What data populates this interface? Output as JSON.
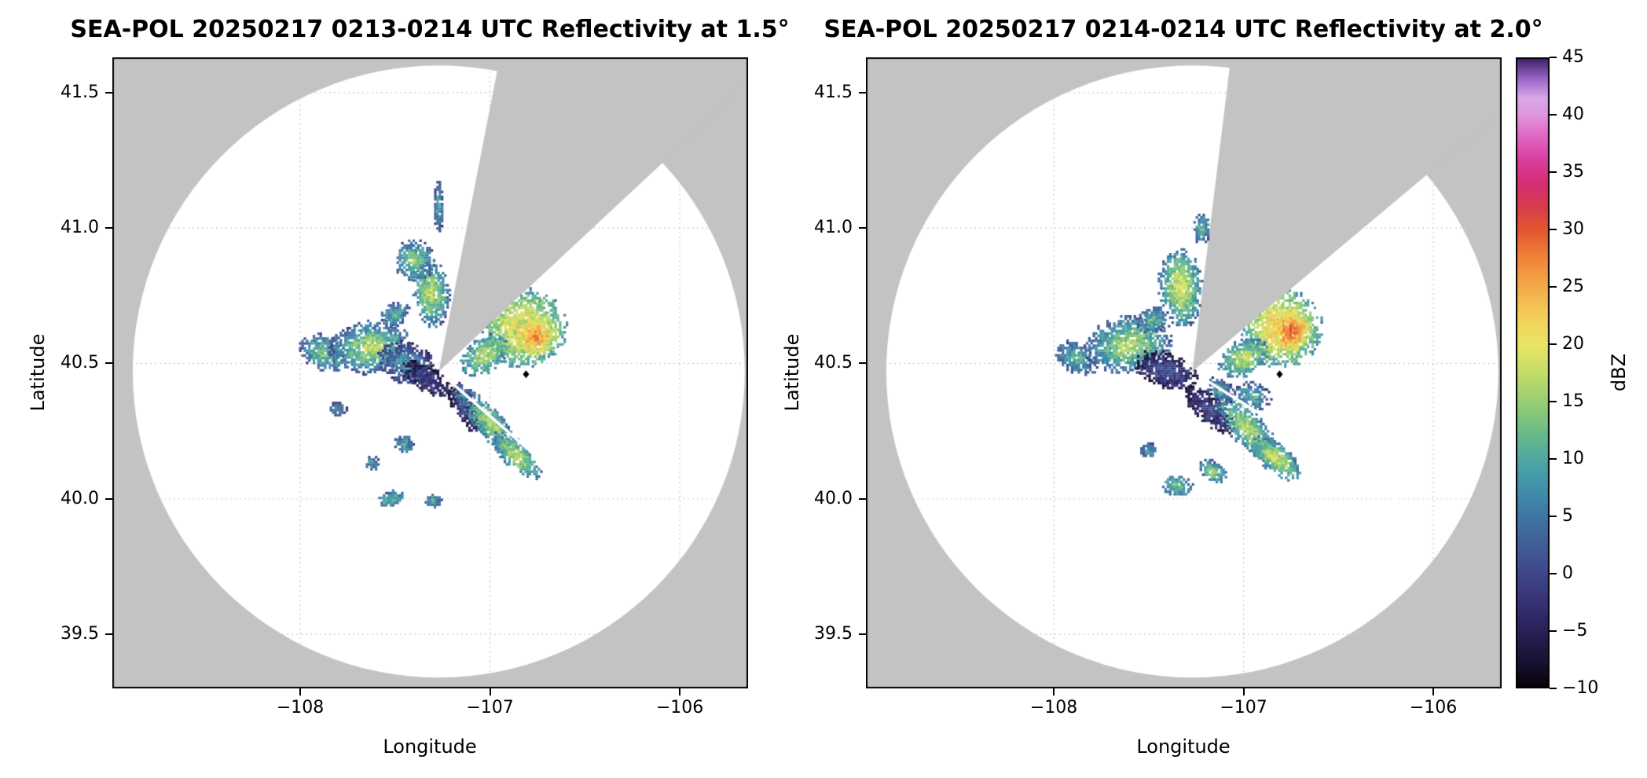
{
  "chart_data": {
    "type": "radar_ppi_reflectivity_pair",
    "instrument": "SEA-POL",
    "date": "20250217",
    "grid": true,
    "grid_color": "#cccccc",
    "background_outside_range": "#c3c3c3",
    "coverage_fill": "#ffffff",
    "colorbar": {
      "label": "dBZ",
      "vmin": -10,
      "vmax": 45,
      "ticks": [
        {
          "value": 45,
          "label": "45"
        },
        {
          "value": 40,
          "label": "40"
        },
        {
          "value": 35,
          "label": "35"
        },
        {
          "value": 30,
          "label": "30"
        },
        {
          "value": 25,
          "label": "25"
        },
        {
          "value": 20,
          "label": "20"
        },
        {
          "value": 15,
          "label": "15"
        },
        {
          "value": 10,
          "label": "10"
        },
        {
          "value": 5,
          "label": "5"
        },
        {
          "value": 0,
          "label": "0"
        },
        {
          "value": -5,
          "label": "−5"
        },
        {
          "value": -10,
          "label": "−10"
        }
      ],
      "stops": [
        [
          -10,
          "#050005"
        ],
        [
          -8,
          "#16102c"
        ],
        [
          -6,
          "#241a49"
        ],
        [
          -4,
          "#2f2763"
        ],
        [
          -2,
          "#383678"
        ],
        [
          0,
          "#3e4689"
        ],
        [
          2,
          "#405995"
        ],
        [
          4,
          "#406c9e"
        ],
        [
          6,
          "#3f80a9"
        ],
        [
          8,
          "#4295ab"
        ],
        [
          10,
          "#4fa8a2"
        ],
        [
          12,
          "#66b98c"
        ],
        [
          14,
          "#86c778"
        ],
        [
          16,
          "#a9d46e"
        ],
        [
          18,
          "#cbdf67"
        ],
        [
          20,
          "#e9e464"
        ],
        [
          22,
          "#f2d45b"
        ],
        [
          24,
          "#f4b94f"
        ],
        [
          26,
          "#f39c42"
        ],
        [
          28,
          "#ee7b37"
        ],
        [
          30,
          "#e2572f"
        ],
        [
          32,
          "#d83c4b"
        ],
        [
          34,
          "#d42d74"
        ],
        [
          36,
          "#d83d9d"
        ],
        [
          38,
          "#e063c2"
        ],
        [
          40,
          "#e195dd"
        ],
        [
          41.5,
          "#d8a9e8"
        ],
        [
          43,
          "#a06ccc"
        ],
        [
          45,
          "#3c1d66"
        ]
      ]
    },
    "panels": [
      {
        "title": "SEA-POL 20250217 0213-0214 UTC Reflectivity at 1.5°",
        "time_utc": "0213-0214",
        "elevation_deg": 1.5,
        "xlabel": "Longitude",
        "ylabel": "Latitude",
        "xlim": [
          -108.99,
          -105.64
        ],
        "ylim": [
          39.3,
          41.63
        ],
        "xticks": [
          {
            "value": -108,
            "label": "−108"
          },
          {
            "value": -107,
            "label": "−107"
          },
          {
            "value": -106,
            "label": "−106"
          }
        ],
        "yticks": [
          {
            "value": 39.5,
            "label": "39.5"
          },
          {
            "value": 40.0,
            "label": "40.0"
          },
          {
            "value": 40.5,
            "label": "40.5"
          },
          {
            "value": 41.0,
            "label": "41.0"
          },
          {
            "value": 41.5,
            "label": "41.5"
          }
        ],
        "radar_site": {
          "lon": -107.27,
          "lat": 40.47
        },
        "range_radius_deg_lat": 1.13,
        "blocked_sector_az_deg": [
          11,
          47
        ],
        "clear_spoke_az_deg": [
          131
        ],
        "site_marker": {
          "lon": -106.81,
          "lat": 40.46,
          "color": "#000000",
          "shape": "diamond"
        },
        "seed": 11,
        "echo_regions": [
          {
            "lon": -107.88,
            "lat": 40.54,
            "rx": 0.13,
            "ry": 0.07,
            "rot": -15,
            "peak_dbz": 14,
            "edge_dbz": 1
          },
          {
            "lon": -107.63,
            "lat": 40.56,
            "rx": 0.22,
            "ry": 0.1,
            "rot": 5,
            "peak_dbz": 18,
            "edge_dbz": 0
          },
          {
            "lon": -107.44,
            "lat": 40.5,
            "rx": 0.16,
            "ry": 0.08,
            "rot": -10,
            "peak_dbz": 9,
            "edge_dbz": -4
          },
          {
            "lon": -107.33,
            "lat": 40.44,
            "rx": 0.15,
            "ry": 0.055,
            "rot": -20,
            "peak_dbz": 0,
            "edge_dbz": -8
          },
          {
            "lon": -107.12,
            "lat": 40.32,
            "rx": 0.13,
            "ry": 0.05,
            "rot": -40,
            "peak_dbz": 0,
            "edge_dbz": -8
          },
          {
            "lon": -107.31,
            "lat": 40.76,
            "rx": 0.1,
            "ry": 0.13,
            "rot": 8,
            "peak_dbz": 18,
            "edge_dbz": 2
          },
          {
            "lon": -107.4,
            "lat": 40.88,
            "rx": 0.11,
            "ry": 0.08,
            "rot": 0,
            "peak_dbz": 15,
            "edge_dbz": 1
          },
          {
            "lon": -107.27,
            "lat": 41.08,
            "rx": 0.03,
            "ry": 0.1,
            "rot": 0,
            "peak_dbz": 10,
            "edge_dbz": -2
          },
          {
            "lon": -106.82,
            "lat": 40.63,
            "rx": 0.23,
            "ry": 0.15,
            "rot": 0,
            "peak_dbz": 24,
            "edge_dbz": 6
          },
          {
            "lon": -106.76,
            "lat": 40.6,
            "rx": 0.12,
            "ry": 0.08,
            "rot": 0,
            "peak_dbz": 28,
            "edge_dbz": 14
          },
          {
            "lon": -107.03,
            "lat": 40.53,
            "rx": 0.13,
            "ry": 0.07,
            "rot": 20,
            "peak_dbz": 18,
            "edge_dbz": 4
          },
          {
            "lon": -107.0,
            "lat": 40.28,
            "rx": 0.2,
            "ry": 0.065,
            "rot": -35,
            "peak_dbz": 17,
            "edge_dbz": 2
          },
          {
            "lon": -106.86,
            "lat": 40.16,
            "rx": 0.15,
            "ry": 0.055,
            "rot": -30,
            "peak_dbz": 19,
            "edge_dbz": 3
          },
          {
            "lon": -107.14,
            "lat": 40.38,
            "rx": 0.07,
            "ry": 0.04,
            "rot": -30,
            "peak_dbz": 8,
            "edge_dbz": -2
          },
          {
            "lon": -107.45,
            "lat": 40.2,
            "rx": 0.06,
            "ry": 0.035,
            "rot": 0,
            "peak_dbz": 10,
            "edge_dbz": 0
          },
          {
            "lon": -107.52,
            "lat": 40.0,
            "rx": 0.07,
            "ry": 0.03,
            "rot": 10,
            "peak_dbz": 13,
            "edge_dbz": 2
          },
          {
            "lon": -107.3,
            "lat": 39.99,
            "rx": 0.05,
            "ry": 0.03,
            "rot": 0,
            "peak_dbz": 11,
            "edge_dbz": 1
          },
          {
            "lon": -107.62,
            "lat": 40.13,
            "rx": 0.04,
            "ry": 0.03,
            "rot": 0,
            "peak_dbz": 8,
            "edge_dbz": 0
          },
          {
            "lon": -107.8,
            "lat": 40.33,
            "rx": 0.05,
            "ry": 0.03,
            "rot": 0,
            "peak_dbz": 7,
            "edge_dbz": -1
          },
          {
            "lon": -107.5,
            "lat": 40.68,
            "rx": 0.08,
            "ry": 0.05,
            "rot": 20,
            "peak_dbz": 12,
            "edge_dbz": 0
          }
        ]
      },
      {
        "title": "SEA-POL 20250217 0214-0214 UTC Reflectivity at 2.0°",
        "time_utc": "0214-0214",
        "elevation_deg": 2.0,
        "xlabel": "Longitude",
        "ylabel": "Latitude",
        "xlim": [
          -108.99,
          -105.64
        ],
        "ylim": [
          39.3,
          41.63
        ],
        "xticks": [
          {
            "value": -108,
            "label": "−108"
          },
          {
            "value": -107,
            "label": "−107"
          },
          {
            "value": -106,
            "label": "−106"
          }
        ],
        "yticks": [
          {
            "value": 39.5,
            "label": "39.5"
          },
          {
            "value": 40.0,
            "label": "40.0"
          },
          {
            "value": 40.5,
            "label": "40.5"
          },
          {
            "value": 41.0,
            "label": "41.0"
          },
          {
            "value": 41.5,
            "label": "41.5"
          }
        ],
        "radar_site": {
          "lon": -107.27,
          "lat": 40.47
        },
        "range_radius_deg_lat": 1.13,
        "blocked_sector_az_deg": [
          7,
          50
        ],
        "clear_spoke_az_deg": [
          122
        ],
        "site_marker": {
          "lon": -106.81,
          "lat": 40.46,
          "color": "#000000",
          "shape": "diamond"
        },
        "seed": 23,
        "echo_regions": [
          {
            "lon": -107.88,
            "lat": 40.52,
            "rx": 0.12,
            "ry": 0.06,
            "rot": -15,
            "peak_dbz": 12,
            "edge_dbz": 0
          },
          {
            "lon": -107.6,
            "lat": 40.57,
            "rx": 0.24,
            "ry": 0.11,
            "rot": 5,
            "peak_dbz": 18,
            "edge_dbz": 0
          },
          {
            "lon": -107.4,
            "lat": 40.47,
            "rx": 0.18,
            "ry": 0.07,
            "rot": -12,
            "peak_dbz": 2,
            "edge_dbz": -8
          },
          {
            "lon": -107.18,
            "lat": 40.33,
            "rx": 0.16,
            "ry": 0.06,
            "rot": -30,
            "peak_dbz": 0,
            "edge_dbz": -8
          },
          {
            "lon": -107.33,
            "lat": 40.78,
            "rx": 0.12,
            "ry": 0.15,
            "rot": 8,
            "peak_dbz": 20,
            "edge_dbz": 2
          },
          {
            "lon": -107.22,
            "lat": 41.0,
            "rx": 0.05,
            "ry": 0.06,
            "rot": 0,
            "peak_dbz": 12,
            "edge_dbz": 0
          },
          {
            "lon": -106.8,
            "lat": 40.63,
            "rx": 0.22,
            "ry": 0.15,
            "rot": 0,
            "peak_dbz": 26,
            "edge_dbz": 6
          },
          {
            "lon": -106.75,
            "lat": 40.62,
            "rx": 0.11,
            "ry": 0.08,
            "rot": 0,
            "peak_dbz": 30,
            "edge_dbz": 16
          },
          {
            "lon": -107.0,
            "lat": 40.52,
            "rx": 0.14,
            "ry": 0.07,
            "rot": 15,
            "peak_dbz": 18,
            "edge_dbz": 4
          },
          {
            "lon": -106.98,
            "lat": 40.26,
            "rx": 0.21,
            "ry": 0.075,
            "rot": -35,
            "peak_dbz": 18,
            "edge_dbz": 2
          },
          {
            "lon": -106.83,
            "lat": 40.15,
            "rx": 0.15,
            "ry": 0.06,
            "rot": -25,
            "peak_dbz": 20,
            "edge_dbz": 3
          },
          {
            "lon": -107.12,
            "lat": 40.4,
            "rx": 0.08,
            "ry": 0.045,
            "rot": -20,
            "peak_dbz": 10,
            "edge_dbz": -2
          },
          {
            "lon": -107.35,
            "lat": 40.05,
            "rx": 0.09,
            "ry": 0.045,
            "rot": -10,
            "peak_dbz": 14,
            "edge_dbz": 2
          },
          {
            "lon": -107.16,
            "lat": 40.1,
            "rx": 0.08,
            "ry": 0.04,
            "rot": -20,
            "peak_dbz": 15,
            "edge_dbz": 2
          },
          {
            "lon": -107.5,
            "lat": 40.18,
            "rx": 0.05,
            "ry": 0.03,
            "rot": 0,
            "peak_dbz": 9,
            "edge_dbz": 0
          },
          {
            "lon": -106.95,
            "lat": 40.38,
            "rx": 0.1,
            "ry": 0.05,
            "rot": -10,
            "peak_dbz": 12,
            "edge_dbz": 0
          },
          {
            "lon": -107.48,
            "lat": 40.66,
            "rx": 0.09,
            "ry": 0.05,
            "rot": 15,
            "peak_dbz": 13,
            "edge_dbz": 0
          }
        ]
      }
    ]
  }
}
